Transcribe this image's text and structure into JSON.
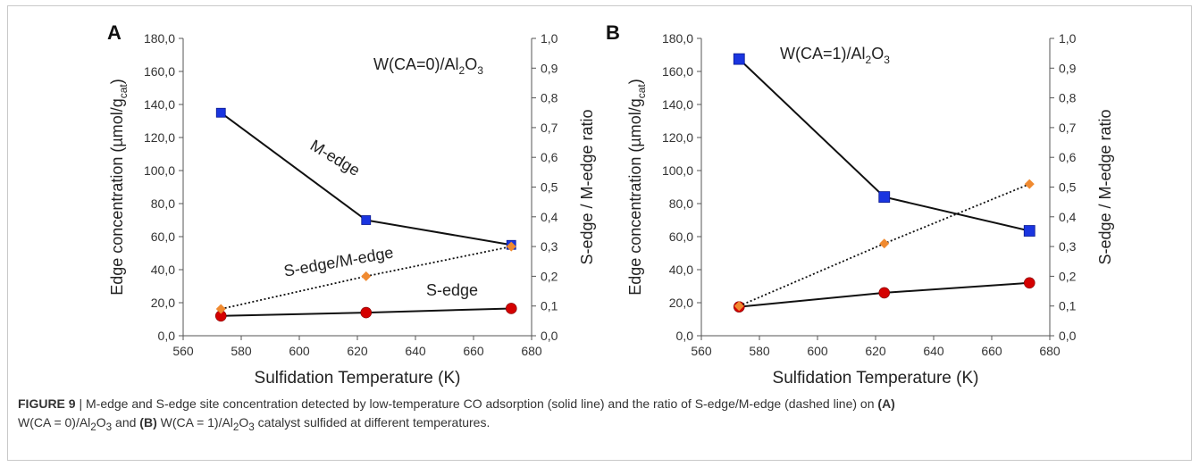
{
  "chart_data": [
    {
      "type": "line",
      "panel_letter": "A",
      "annotation_main": "W(CA=0)/Al",
      "annotation_sub1": "2",
      "annotation_mid": "O",
      "annotation_sub2": "3",
      "x": [
        573,
        623,
        673
      ],
      "xlabel": "Sulfidation Temperature (K)",
      "xlim": [
        560,
        680
      ],
      "xticks": [
        "560",
        "580",
        "600",
        "620",
        "640",
        "660",
        "680"
      ],
      "ylabel_left_main": "Edge concentration (µmol/g",
      "ylabel_left_sub": "cat",
      "ylabel_left_end": ")",
      "ylim_left": [
        0,
        180
      ],
      "yticks_left": [
        "0,0",
        "20,0",
        "40,0",
        "60,0",
        "80,0",
        "100,0",
        "120,0",
        "140,0",
        "160,0",
        "180,0"
      ],
      "ylabel_right": "S-edge / M-edge ratio",
      "ylim_right": [
        0,
        1
      ],
      "yticks_right": [
        "0,0",
        "0,1",
        "0,2",
        "0,3",
        "0,4",
        "0,5",
        "0,6",
        "0,7",
        "0,8",
        "0,9",
        "1,0"
      ],
      "series": [
        {
          "name": "M-edge",
          "axis": "left",
          "values": [
            135.0,
            70.0,
            55.0
          ],
          "color": "#1a35e0",
          "marker": "square",
          "line": "solid"
        },
        {
          "name": "S-edge",
          "axis": "left",
          "values": [
            12.0,
            14.0,
            16.5
          ],
          "color": "#d40000",
          "marker": "circle",
          "line": "solid"
        },
        {
          "name": "S-edge/M-edge",
          "axis": "right",
          "values": [
            0.09,
            0.2,
            0.3
          ],
          "color": "#f08a30",
          "marker": "diamond",
          "line": "dotted"
        }
      ]
    },
    {
      "type": "line",
      "panel_letter": "B",
      "annotation_main": "W(CA=1)/Al",
      "annotation_sub1": "2",
      "annotation_mid": "O",
      "annotation_sub2": "3",
      "x": [
        573,
        623,
        673
      ],
      "xlabel": "Sulfidation Temperature (K)",
      "xlim": [
        560,
        680
      ],
      "xticks": [
        "560",
        "580",
        "600",
        "620",
        "640",
        "660",
        "680"
      ],
      "ylabel_left_main": "Edge concentration (µmol/g",
      "ylabel_left_sub": "cat",
      "ylabel_left_end": ")",
      "ylim_left": [
        0,
        180
      ],
      "yticks_left": [
        "0,0",
        "20,0",
        "40,0",
        "60,0",
        "80,0",
        "100,0",
        "120,0",
        "140,0",
        "160,0",
        "180,0"
      ],
      "ylabel_right": "S-edge / M-edge ratio",
      "ylim_right": [
        0,
        1
      ],
      "yticks_right": [
        "0,0",
        "0,1",
        "0,2",
        "0,3",
        "0,4",
        "0,5",
        "0,6",
        "0,7",
        "0,8",
        "0,9",
        "1,0"
      ],
      "series": [
        {
          "name": "",
          "axis": "left",
          "values": [
            167.5,
            84.0,
            63.5
          ],
          "color": "#1a35e0",
          "marker": "square",
          "line": "solid"
        },
        {
          "name": "",
          "axis": "left",
          "values": [
            17.5,
            26.0,
            32.0
          ],
          "color": "#d40000",
          "marker": "circle",
          "line": "solid"
        },
        {
          "name": "",
          "axis": "right",
          "values": [
            0.1,
            0.31,
            0.51
          ],
          "color": "#f08a30",
          "marker": "diamond",
          "line": "dotted"
        }
      ]
    }
  ],
  "caption": {
    "label": "FIGURE 9",
    "sep": " | ",
    "text1": "M-edge and S-edge site concentration detected by low-temperature CO adsorption (solid line) and the ratio of S-edge/M-edge (dashed line) on ",
    "tagA": "(A)",
    "text2": "W(CA = 0)/Al",
    "sub1": "2",
    "text3": "O",
    "sub2": "3",
    "text4": " and ",
    "tagB": "(B)",
    "text5": " W(CA = 1)/Al",
    "sub3": "2",
    "text6": "O",
    "sub4": "3",
    "text7": " catalyst sulfided at different temperatures."
  }
}
